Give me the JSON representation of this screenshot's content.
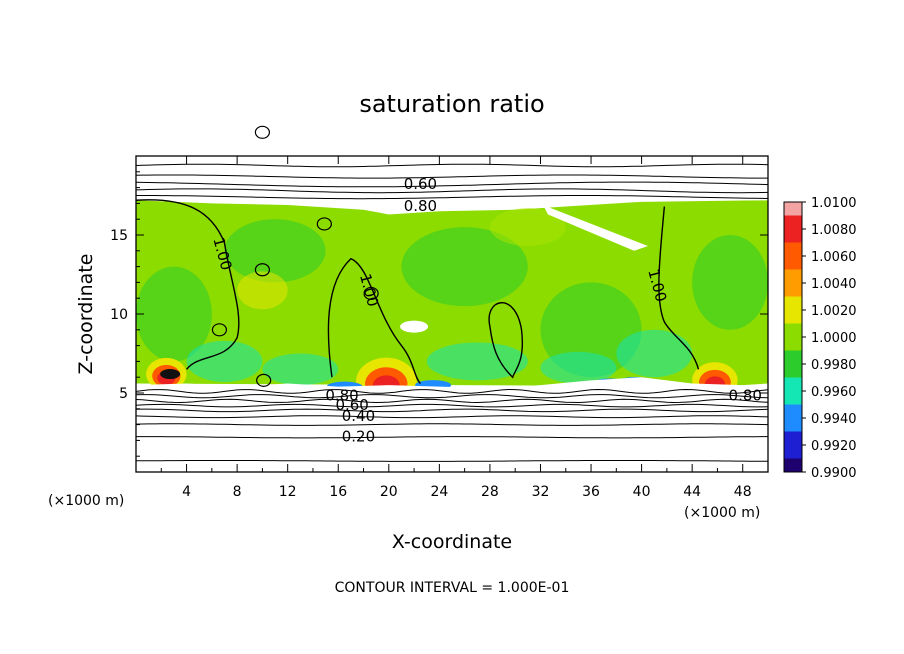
{
  "chart_data": {
    "type": "heatmap",
    "title": "saturation ratio",
    "xlabel": "X-coordinate",
    "ylabel": "Z-coordinate",
    "x_unit": "(×1000 m)",
    "y_unit": "(×1000 m)",
    "footer": "CONTOUR INTERVAL = 1.000E-01",
    "xlim": [
      0,
      50
    ],
    "ylim": [
      0,
      20
    ],
    "x_ticks": [
      4,
      8,
      12,
      16,
      20,
      24,
      28,
      32,
      36,
      40,
      44,
      48
    ],
    "y_ticks": [
      5,
      10,
      15
    ],
    "colorbar": {
      "levels": [
        "1.0100",
        "1.0080",
        "1.0060",
        "1.0040",
        "1.0020",
        "1.0000",
        "0.9980",
        "0.9960",
        "0.9940",
        "0.9920",
        "0.9900"
      ],
      "colors": [
        "#f4a3a3",
        "#ec2121",
        "#ff5a00",
        "#ff9c00",
        "#e6e600",
        "#8cdc00",
        "#2ccc2c",
        "#14e6b4",
        "#1e8cff",
        "#1e1ed2",
        "#1e006e"
      ]
    },
    "contour_labels": [
      {
        "text": "0.60",
        "x": 22.5,
        "z": 18.2
      },
      {
        "text": "0.80",
        "x": 22.5,
        "z": 16.8
      },
      {
        "text": "1.00",
        "x": 6.8,
        "z": 13.8
      },
      {
        "text": "1.00",
        "x": 18.4,
        "z": 11.5
      },
      {
        "text": "1.00",
        "x": 41.2,
        "z": 11.8
      },
      {
        "text": "0.80",
        "x": 16.3,
        "z": 4.8
      },
      {
        "text": "0.60",
        "x": 17.1,
        "z": 4.2
      },
      {
        "text": "0.40",
        "x": 17.6,
        "z": 3.5
      },
      {
        "text": "0.20",
        "x": 17.6,
        "z": 2.2
      },
      {
        "text": "0.80",
        "x": 48.2,
        "z": 4.8
      }
    ]
  }
}
